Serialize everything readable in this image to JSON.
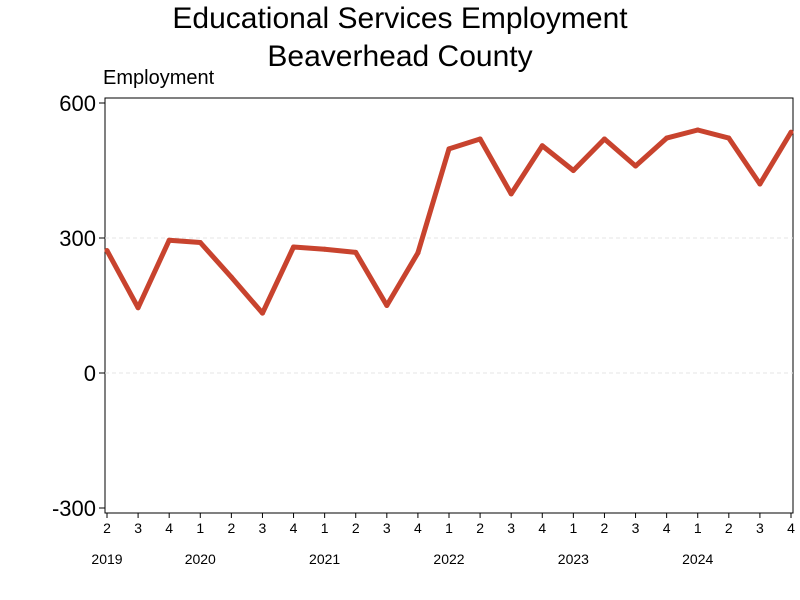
{
  "chart_data": {
    "type": "line",
    "title": "Educational Services Employment",
    "subtitle": "Beaverhead County",
    "xlabel": "",
    "ylabel": "Employment",
    "ylim": [
      -300,
      600
    ],
    "yticks": [
      -300,
      0,
      300,
      600
    ],
    "grid": true,
    "color": "#c8432e",
    "categories": [
      "2",
      "3",
      "4",
      "1",
      "2",
      "3",
      "4",
      "1",
      "2",
      "3",
      "4",
      "1",
      "2",
      "3",
      "4",
      "1",
      "2",
      "3",
      "4",
      "1",
      "2",
      "3",
      "4"
    ],
    "years": [
      {
        "label": "2019",
        "index": 0
      },
      {
        "label": "2020",
        "index": 3
      },
      {
        "label": "2021",
        "index": 7
      },
      {
        "label": "2022",
        "index": 11
      },
      {
        "label": "2023",
        "index": 15
      },
      {
        "label": "2024",
        "index": 19
      }
    ],
    "series": [
      {
        "values": [
          272,
          145,
          295,
          290,
          213,
          133,
          280,
          275,
          268,
          150,
          267,
          498,
          520,
          398,
          505,
          450,
          520,
          460,
          522,
          540,
          522,
          420,
          535
        ]
      }
    ]
  }
}
